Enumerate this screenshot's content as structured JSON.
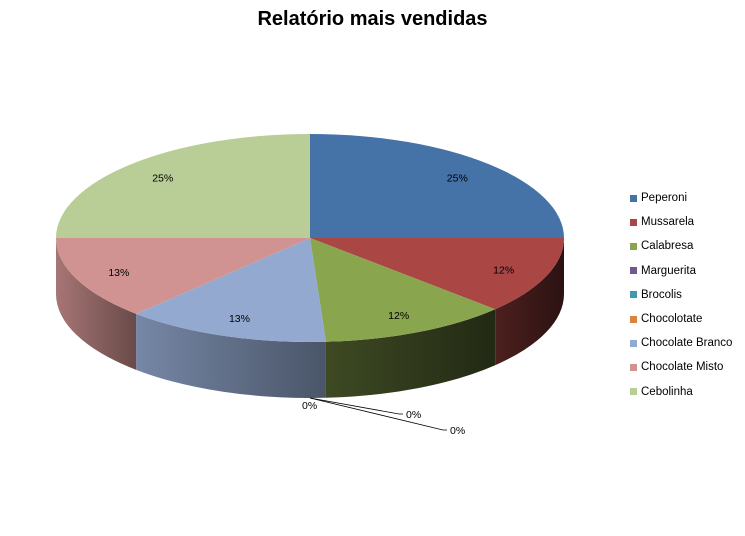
{
  "chart_data": {
    "type": "pie",
    "title": "Relatório mais vendidas",
    "legend_position": "right",
    "slices": [
      {
        "name": "Peperoni",
        "value": 25,
        "label": "25%",
        "color": "#4572a7"
      },
      {
        "name": "Mussarela",
        "value": 12,
        "label": "12%",
        "color": "#aa4643"
      },
      {
        "name": "Calabresa",
        "value": 12,
        "label": "12%",
        "color": "#89a54e"
      },
      {
        "name": "Marguerita",
        "value": 0,
        "label": "0%",
        "color": "#71588f"
      },
      {
        "name": "Brocolis",
        "value": 0,
        "label": "0%",
        "color": "#4198af"
      },
      {
        "name": "Chocolotate",
        "value": 0,
        "label": "0%",
        "color": "#db843d"
      },
      {
        "name": "Chocolate Branco",
        "value": 13,
        "label": "13%",
        "color": "#93a9cf"
      },
      {
        "name": "Chocolate Misto",
        "value": 13,
        "label": "13%",
        "color": "#d19392"
      },
      {
        "name": "Cebolinha",
        "value": 25,
        "label": "25%",
        "color": "#b9cd96"
      }
    ]
  }
}
